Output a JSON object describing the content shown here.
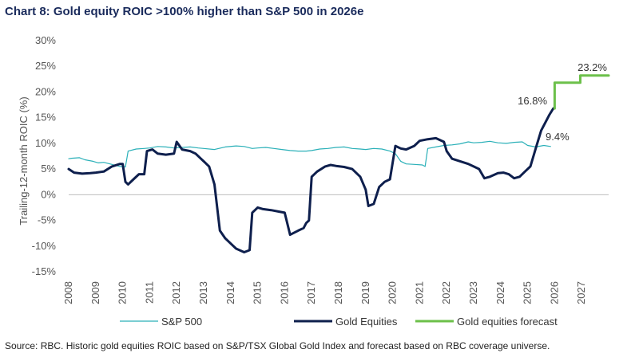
{
  "title": "Chart 8: Gold equity ROIC >100% higher than S&P 500 in 2026e",
  "source": "Source: RBC. Historic gold equities ROIC based on S&P/TSX Global Gold Index and forecast based on RBC coverage universe.",
  "chart_data": {
    "type": "line",
    "title": "Chart 8: Gold equity ROIC >100% higher than S&P 500 in 2026e",
    "xlabel": "",
    "ylabel": "Trailing-12-month ROIC (%)",
    "xlim": [
      2008,
      2028
    ],
    "ylim": [
      -15,
      30
    ],
    "y_ticks": [
      -15,
      -10,
      -5,
      0,
      5,
      10,
      15,
      20,
      25,
      30
    ],
    "y_tick_labels": [
      "-15%",
      "-10%",
      "-5%",
      "0%",
      "5%",
      "10%",
      "15%",
      "20%",
      "25%",
      "30%"
    ],
    "x_ticks": [
      2008,
      2009,
      2010,
      2011,
      2012,
      2013,
      2014,
      2015,
      2016,
      2017,
      2018,
      2019,
      2020,
      2021,
      2022,
      2023,
      2024,
      2025,
      2026,
      2027
    ],
    "x_tick_labels": [
      "2008",
      "2009",
      "2010",
      "2011",
      "2012",
      "2013",
      "2014",
      "2015",
      "2016",
      "2017",
      "2018",
      "2019",
      "2020",
      "2021",
      "2022",
      "2023",
      "2024",
      "2025",
      "2026",
      "2027"
    ],
    "grid": false,
    "legend_position": "bottom",
    "series": [
      {
        "name": "S&P 500",
        "color": "#2ab0b8",
        "style": "thin",
        "x": [
          2008.0,
          2008.1,
          2008.4,
          2008.6,
          2008.9,
          2009.1,
          2009.3,
          2009.6,
          2009.9,
          2010.1,
          2010.2,
          2010.5,
          2010.8,
          2011.0,
          2011.3,
          2011.6,
          2011.9,
          2012.2,
          2012.5,
          2012.8,
          2013.0,
          2013.4,
          2013.8,
          2014.2,
          2014.5,
          2014.8,
          2015.0,
          2015.3,
          2015.6,
          2015.9,
          2016.2,
          2016.5,
          2016.8,
          2017.0,
          2017.3,
          2017.6,
          2017.9,
          2018.2,
          2018.5,
          2018.8,
          2019.0,
          2019.3,
          2019.6,
          2019.9,
          2020.1,
          2020.3,
          2020.5,
          2020.8,
          2021.1,
          2021.2,
          2021.3,
          2021.6,
          2021.9,
          2022.2,
          2022.5,
          2022.8,
          2023.0,
          2023.3,
          2023.6,
          2023.9,
          2024.2,
          2024.5,
          2024.8,
          2025.0,
          2025.3,
          2025.6,
          2025.85
        ],
        "values": [
          7.0,
          7.1,
          7.2,
          6.8,
          6.5,
          6.2,
          6.3,
          5.9,
          5.5,
          5.4,
          8.5,
          8.9,
          9.0,
          9.1,
          9.4,
          9.3,
          9.1,
          9.2,
          9.3,
          9.1,
          9.0,
          8.8,
          9.3,
          9.5,
          9.4,
          9.0,
          9.1,
          9.2,
          9.0,
          8.8,
          8.6,
          8.5,
          8.5,
          8.6,
          8.9,
          9.0,
          9.2,
          9.3,
          9.0,
          8.9,
          8.8,
          9.0,
          8.9,
          8.5,
          8.0,
          6.5,
          6.0,
          5.9,
          5.8,
          5.5,
          9.0,
          9.3,
          9.6,
          9.7,
          9.9,
          10.3,
          10.1,
          10.2,
          10.4,
          10.1,
          10.0,
          10.2,
          10.3,
          9.6,
          9.3,
          9.6,
          9.4
        ]
      },
      {
        "name": "Gold Equities",
        "color": "#0e1f4d",
        "style": "thick",
        "x": [
          2008.0,
          2008.2,
          2008.5,
          2008.8,
          2009.0,
          2009.3,
          2009.6,
          2009.9,
          2010.0,
          2010.1,
          2010.2,
          2010.4,
          2010.6,
          2010.8,
          2010.9,
          2011.1,
          2011.3,
          2011.6,
          2011.9,
          2012.0,
          2012.2,
          2012.5,
          2012.7,
          2012.9,
          2013.0,
          2013.2,
          2013.4,
          2013.6,
          2013.8,
          2014.0,
          2014.2,
          2014.5,
          2014.7,
          2014.8,
          2015.0,
          2015.2,
          2015.5,
          2015.8,
          2016.0,
          2016.2,
          2016.5,
          2016.7,
          2016.8,
          2016.9,
          2017.0,
          2017.2,
          2017.5,
          2017.7,
          2017.9,
          2018.2,
          2018.5,
          2018.8,
          2019.0,
          2019.1,
          2019.3,
          2019.5,
          2019.7,
          2019.9,
          2020.1,
          2020.3,
          2020.5,
          2020.8,
          2021.0,
          2021.3,
          2021.6,
          2021.9,
          2022.0,
          2022.2,
          2022.5,
          2022.8,
          2023.0,
          2023.2,
          2023.4,
          2023.6,
          2023.9,
          2024.1,
          2024.3,
          2024.5,
          2024.7,
          2024.9,
          2025.1,
          2025.3,
          2025.5,
          2025.65,
          2025.8,
          2025.95
        ],
        "values": [
          5.0,
          4.3,
          4.1,
          4.2,
          4.3,
          4.5,
          5.5,
          6.0,
          6.0,
          2.5,
          2.0,
          3.0,
          4.0,
          4.0,
          8.5,
          8.8,
          8.0,
          7.8,
          8.0,
          10.3,
          8.8,
          8.5,
          8.0,
          7.0,
          6.5,
          5.5,
          2.0,
          -7.0,
          -8.5,
          -9.5,
          -10.5,
          -11.2,
          -10.8,
          -3.5,
          -2.5,
          -2.8,
          -3.0,
          -3.3,
          -3.5,
          -7.8,
          -7.0,
          -6.5,
          -5.5,
          -5.0,
          3.5,
          4.5,
          5.5,
          5.8,
          5.6,
          5.4,
          5.0,
          3.5,
          1.0,
          -2.2,
          -1.8,
          1.5,
          2.5,
          3.0,
          9.5,
          9.0,
          8.8,
          9.5,
          10.5,
          10.8,
          11.0,
          10.3,
          8.5,
          7.0,
          6.5,
          6.0,
          5.5,
          5.0,
          3.2,
          3.5,
          4.2,
          4.3,
          4.0,
          3.2,
          3.5,
          4.5,
          5.5,
          9.0,
          12.5,
          14.0,
          15.5,
          16.8
        ]
      },
      {
        "name": "Gold equities forecast",
        "color": "#6cc04a",
        "style": "thick",
        "x": [
          2026.0,
          2026.0,
          2026.95,
          2026.95,
          2028.0
        ],
        "values": [
          16.8,
          21.8,
          21.8,
          23.2,
          23.2
        ]
      }
    ],
    "annotations": [
      {
        "text": "16.8%",
        "x": 2025.9,
        "y": 16.8
      },
      {
        "text": "9.4%",
        "x": 2025.9,
        "y": 9.4
      },
      {
        "text": "23.2%",
        "x": 2027.5,
        "y": 23.2
      }
    ]
  }
}
